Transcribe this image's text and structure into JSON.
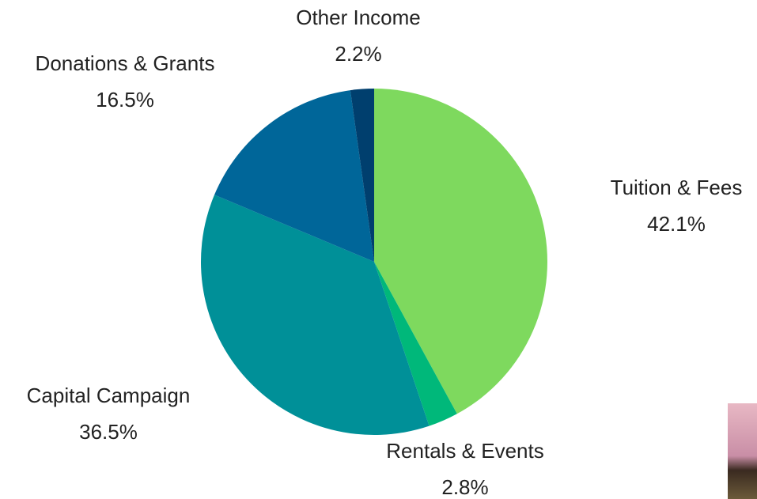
{
  "chart_data": {
    "type": "pie",
    "categories": [
      "Tuition & Fees",
      "Rentals & Events",
      "Capital Campaign",
      "Donations & Grants",
      "Other Income"
    ],
    "values": [
      42.1,
      2.8,
      36.5,
      16.5,
      2.2
    ],
    "value_labels": [
      "42.1%",
      "2.8%",
      "36.5%",
      "16.5%",
      "2.2%"
    ],
    "colors": [
      "#7ed95e",
      "#00b87a",
      "#009098",
      "#006699",
      "#003f6e"
    ]
  }
}
